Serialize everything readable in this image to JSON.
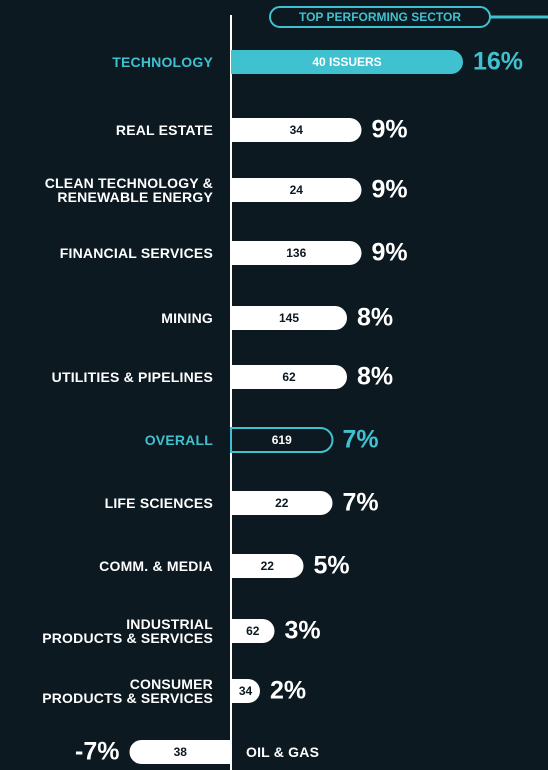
{
  "chart_data": {
    "type": "bar",
    "orientation": "horizontal",
    "annotation": "TOP PERFORMING SECTOR",
    "categories": [
      "TECHNOLOGY",
      "REAL ESTATE",
      "CLEAN TECHNOLOGY &\nRENEWABLE ENERGY",
      "FINANCIAL SERVICES",
      "MINING",
      "UTILITIES & PIPELINES",
      "OVERALL",
      "LIFE SCIENCES",
      "COMM. & MEDIA",
      "INDUSTRIAL\nPRODUCTS & SERVICES",
      "CONSUMER\nPRODUCTS & SERVICES",
      "OIL & GAS"
    ],
    "values": [
      16,
      9,
      9,
      9,
      8,
      8,
      7,
      7,
      5,
      3,
      2,
      -7
    ],
    "value_labels": [
      "16%",
      "9%",
      "9%",
      "9%",
      "8%",
      "8%",
      "7%",
      "7%",
      "5%",
      "3%",
      "2%",
      "-7%"
    ],
    "issuers": [
      {
        "value": 40,
        "label": "40 ISSUERS"
      },
      34,
      24,
      136,
      145,
      62,
      619,
      22,
      22,
      62,
      34,
      38
    ],
    "colors": [
      "#3fc1cf",
      "#ffffff",
      "#ffffff",
      "#ffffff",
      "#ffffff",
      "#ffffff",
      "#0c1921",
      "#ffffff",
      "#ffffff",
      "#ffffff",
      "#ffffff",
      "#ffffff"
    ],
    "text_colors": [
      "#3fc1cf",
      "#ffffff",
      "#ffffff",
      "#ffffff",
      "#ffffff",
      "#ffffff",
      "#3fc1cf",
      "#ffffff",
      "#ffffff",
      "#ffffff",
      "#ffffff",
      "#ffffff"
    ],
    "highlight_color": "#3fc1cf"
  }
}
